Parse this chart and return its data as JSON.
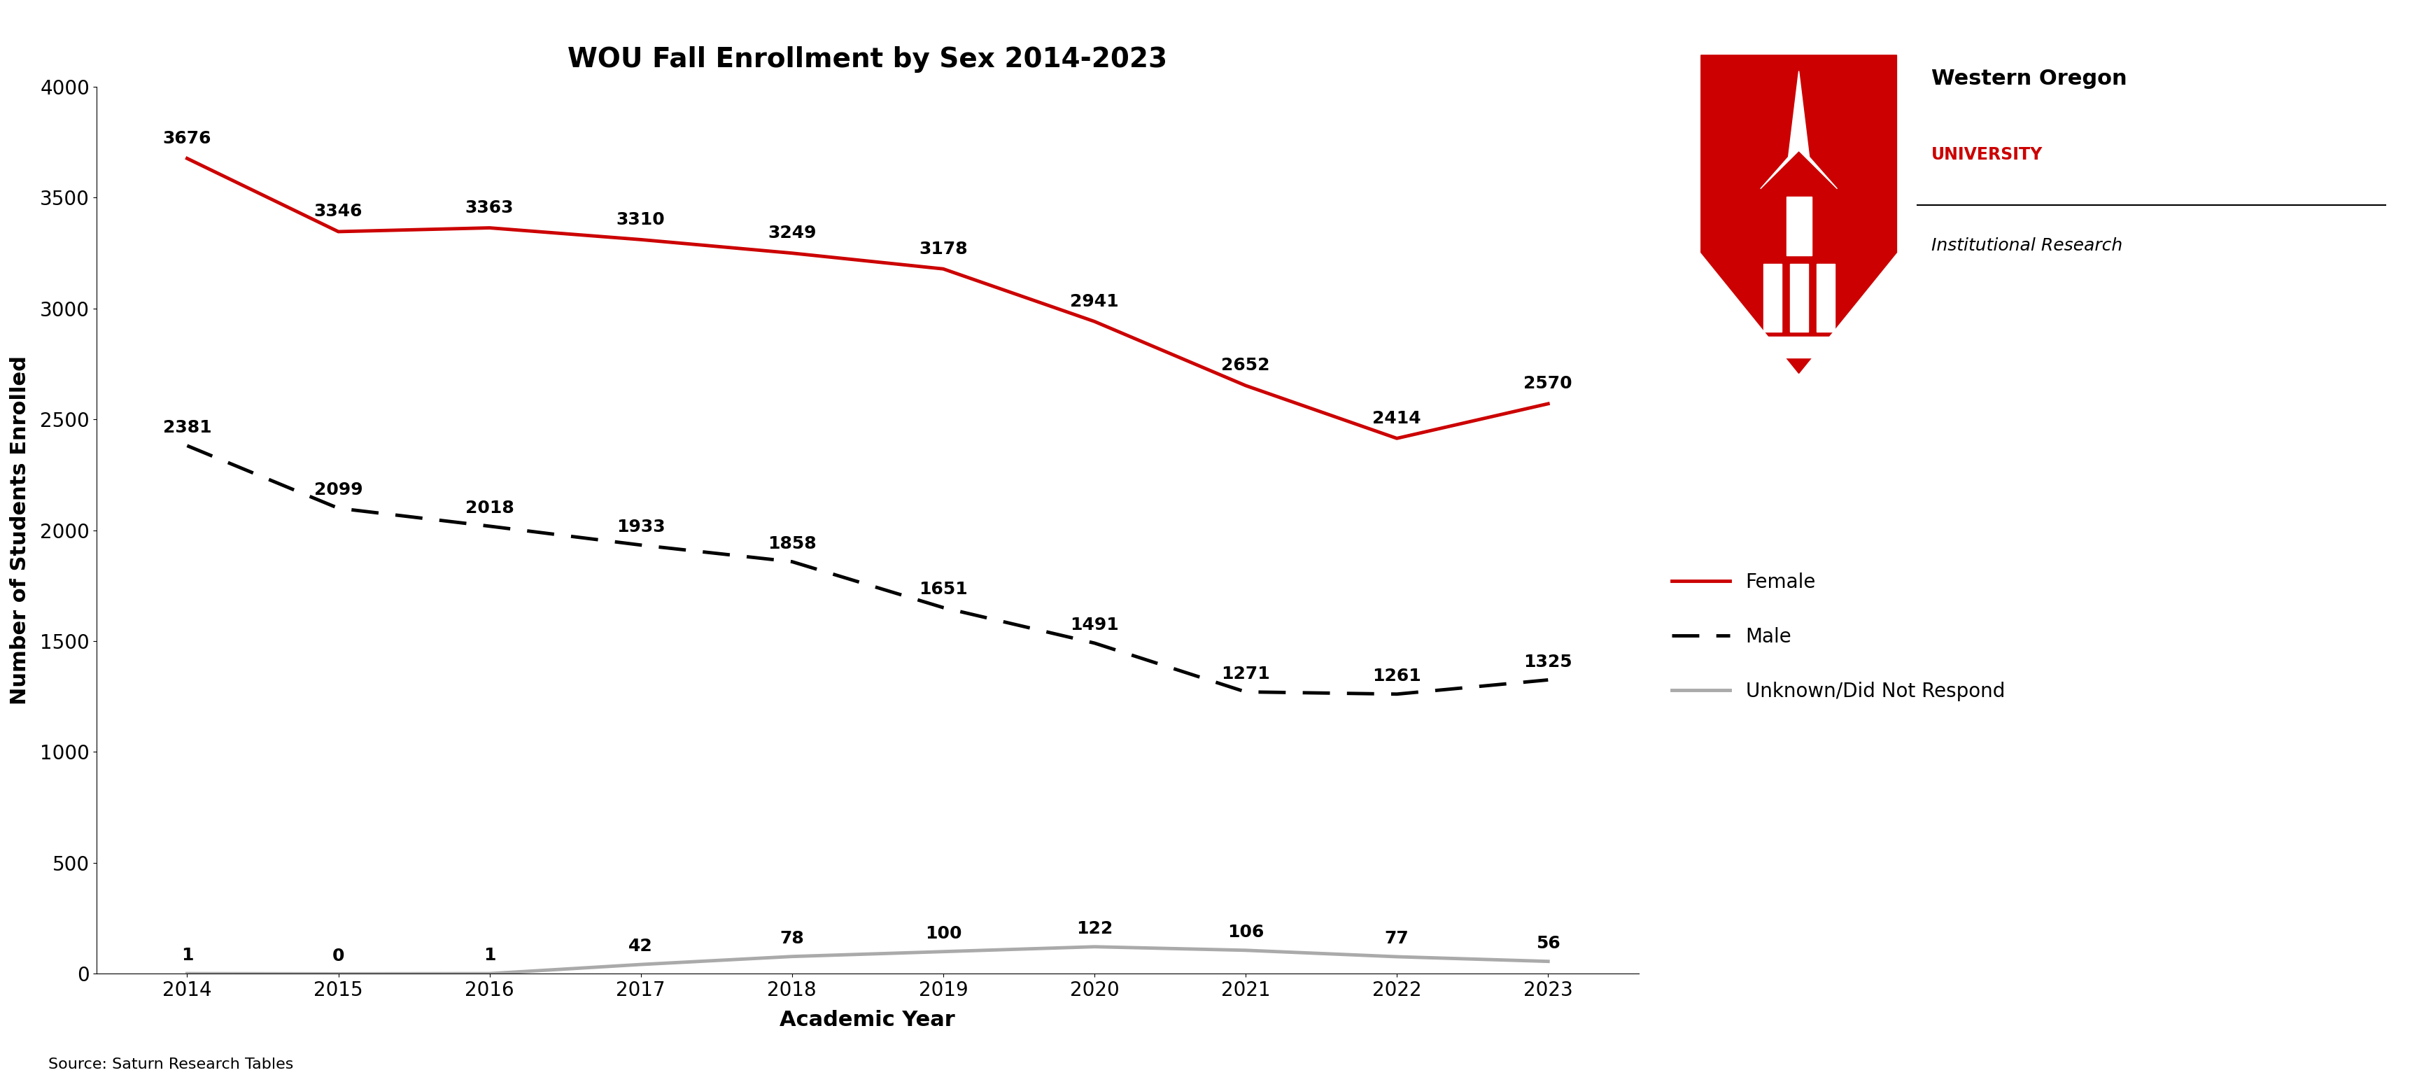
{
  "title": "WOU Fall Enrollment by Sex 2014-2023",
  "xlabel": "Academic Year",
  "ylabel": "Number of Students Enrolled",
  "source": "Source: Saturn Research Tables",
  "years": [
    2014,
    2015,
    2016,
    2017,
    2018,
    2019,
    2020,
    2021,
    2022,
    2023
  ],
  "female": [
    3676,
    3346,
    3363,
    3310,
    3249,
    3178,
    2941,
    2652,
    2414,
    2570
  ],
  "male": [
    2381,
    2099,
    2018,
    1933,
    1858,
    1651,
    1491,
    1271,
    1261,
    1325
  ],
  "unknown": [
    1,
    0,
    1,
    42,
    78,
    100,
    122,
    106,
    77,
    56
  ],
  "female_color": "#CC0000",
  "male_color": "#000000",
  "unknown_color": "#AAAAAA",
  "background_color": "#FFFFFF",
  "ylim": [
    0,
    4000
  ],
  "yticks": [
    0,
    500,
    1000,
    1500,
    2000,
    2500,
    3000,
    3500,
    4000
  ],
  "title_fontsize": 28,
  "axis_label_fontsize": 22,
  "tick_fontsize": 20,
  "annotation_fontsize": 18,
  "legend_fontsize": 20,
  "source_fontsize": 16,
  "linewidth": 3.5,
  "wou_name_line1": "Western Oregon",
  "wou_name_line2": "UNIVERSITY",
  "wou_inst": "Institutional Research"
}
